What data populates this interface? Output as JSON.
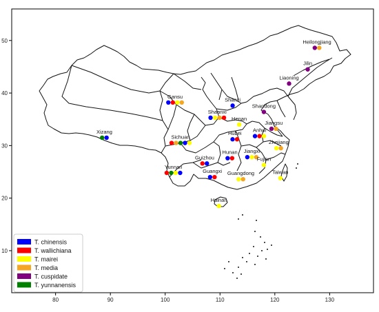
{
  "chart_data": {
    "type": "scatter",
    "title": "",
    "xlabel": "",
    "ylabel": "",
    "xlim": [
      72,
      138
    ],
    "ylim": [
      2,
      56
    ],
    "xticks": [
      80,
      90,
      100,
      110,
      120,
      130
    ],
    "yticks": [
      10,
      20,
      30,
      40,
      50
    ],
    "legend_position": "bottom-left",
    "series": [
      {
        "name": "T. chinensis",
        "color": "#0000ff"
      },
      {
        "name": "T. wallichiana",
        "color": "#ff0000"
      },
      {
        "name": "T. mairei",
        "color": "#ffff00"
      },
      {
        "name": "T. media",
        "color": "#f5a623"
      },
      {
        "name": "T. cuspidate",
        "color": "#800080"
      },
      {
        "name": "T. yunnanensis",
        "color": "#008000"
      }
    ],
    "locations": [
      {
        "name": "Heilongjiang",
        "lon": 127.7,
        "lat": 48.6,
        "species": [
          "T. cuspidate",
          "T. media"
        ]
      },
      {
        "name": "Jilin",
        "lon": 126.0,
        "lat": 44.5,
        "species": [
          "T. cuspidate"
        ]
      },
      {
        "name": "Liaoning",
        "lon": 122.6,
        "lat": 41.8,
        "species": [
          "T. cuspidate"
        ]
      },
      {
        "name": "Gansu",
        "lon": 101.8,
        "lat": 38.2,
        "species": [
          "T. chinensis",
          "T. wallichiana",
          "T. mairei",
          "T. media"
        ]
      },
      {
        "name": "Shanxi",
        "lon": 112.3,
        "lat": 37.6,
        "species": [
          "T. chinensis"
        ]
      },
      {
        "name": "Shandong",
        "lon": 118.0,
        "lat": 36.4,
        "species": [
          "T. cuspidate"
        ]
      },
      {
        "name": "Shaanxi",
        "lon": 109.5,
        "lat": 35.3,
        "species": [
          "T. chinensis",
          "T. mairei",
          "T. media",
          "T. wallichiana"
        ]
      },
      {
        "name": "Henan",
        "lon": 113.5,
        "lat": 34.0,
        "species": [
          "T. mairei"
        ]
      },
      {
        "name": "Jiangsu",
        "lon": 119.8,
        "lat": 33.2,
        "species": [
          "T. cuspidate",
          "T. media"
        ]
      },
      {
        "name": "Anhui",
        "lon": 117.2,
        "lat": 31.8,
        "species": [
          "T. chinensis",
          "T. wallichiana",
          "T. mairei"
        ]
      },
      {
        "name": "Xizang",
        "lon": 88.9,
        "lat": 31.5,
        "species": [
          "T. yunnanensis",
          "T. chinensis"
        ]
      },
      {
        "name": "Hubei",
        "lon": 112.7,
        "lat": 31.2,
        "species": [
          "T. chinensis",
          "T. wallichiana"
        ]
      },
      {
        "name": "Sichuan",
        "lon": 102.8,
        "lat": 30.5,
        "species": [
          "T. wallichiana",
          "T. media",
          "T. yunnanensis",
          "T. chinensis",
          "T. mairei"
        ]
      },
      {
        "name": "Zhejiang",
        "lon": 120.7,
        "lat": 29.5,
        "species": [
          "T. mairei",
          "T. media"
        ]
      },
      {
        "name": "Jiangxi",
        "lon": 115.8,
        "lat": 27.8,
        "species": [
          "T. chinensis",
          "T. mairei",
          "T. media"
        ]
      },
      {
        "name": "Hunan",
        "lon": 111.8,
        "lat": 27.6,
        "species": [
          "T. chinensis",
          "T. wallichiana"
        ]
      },
      {
        "name": "Guizhou",
        "lon": 107.2,
        "lat": 26.6,
        "species": [
          "T. wallichiana",
          "T. chinensis"
        ]
      },
      {
        "name": "Fujian",
        "lon": 118.0,
        "lat": 26.3,
        "species": [
          "T. mairei"
        ]
      },
      {
        "name": "Yunnan",
        "lon": 101.5,
        "lat": 24.8,
        "species": [
          "T. wallichiana",
          "T. yunnanensis",
          "T. mairei",
          "T. chinensis"
        ]
      },
      {
        "name": "Guangxi",
        "lon": 108.6,
        "lat": 24.0,
        "species": [
          "T. chinensis",
          "T. wallichiana"
        ]
      },
      {
        "name": "Guangdong",
        "lon": 113.8,
        "lat": 23.6,
        "species": [
          "T. mairei",
          "T. media"
        ]
      },
      {
        "name": "Taiwan",
        "lon": 121.0,
        "lat": 23.8,
        "species": [
          "T. mairei"
        ]
      },
      {
        "name": "Hainan",
        "lon": 109.8,
        "lat": 18.5,
        "species": [
          "T. mairei"
        ]
      }
    ]
  }
}
